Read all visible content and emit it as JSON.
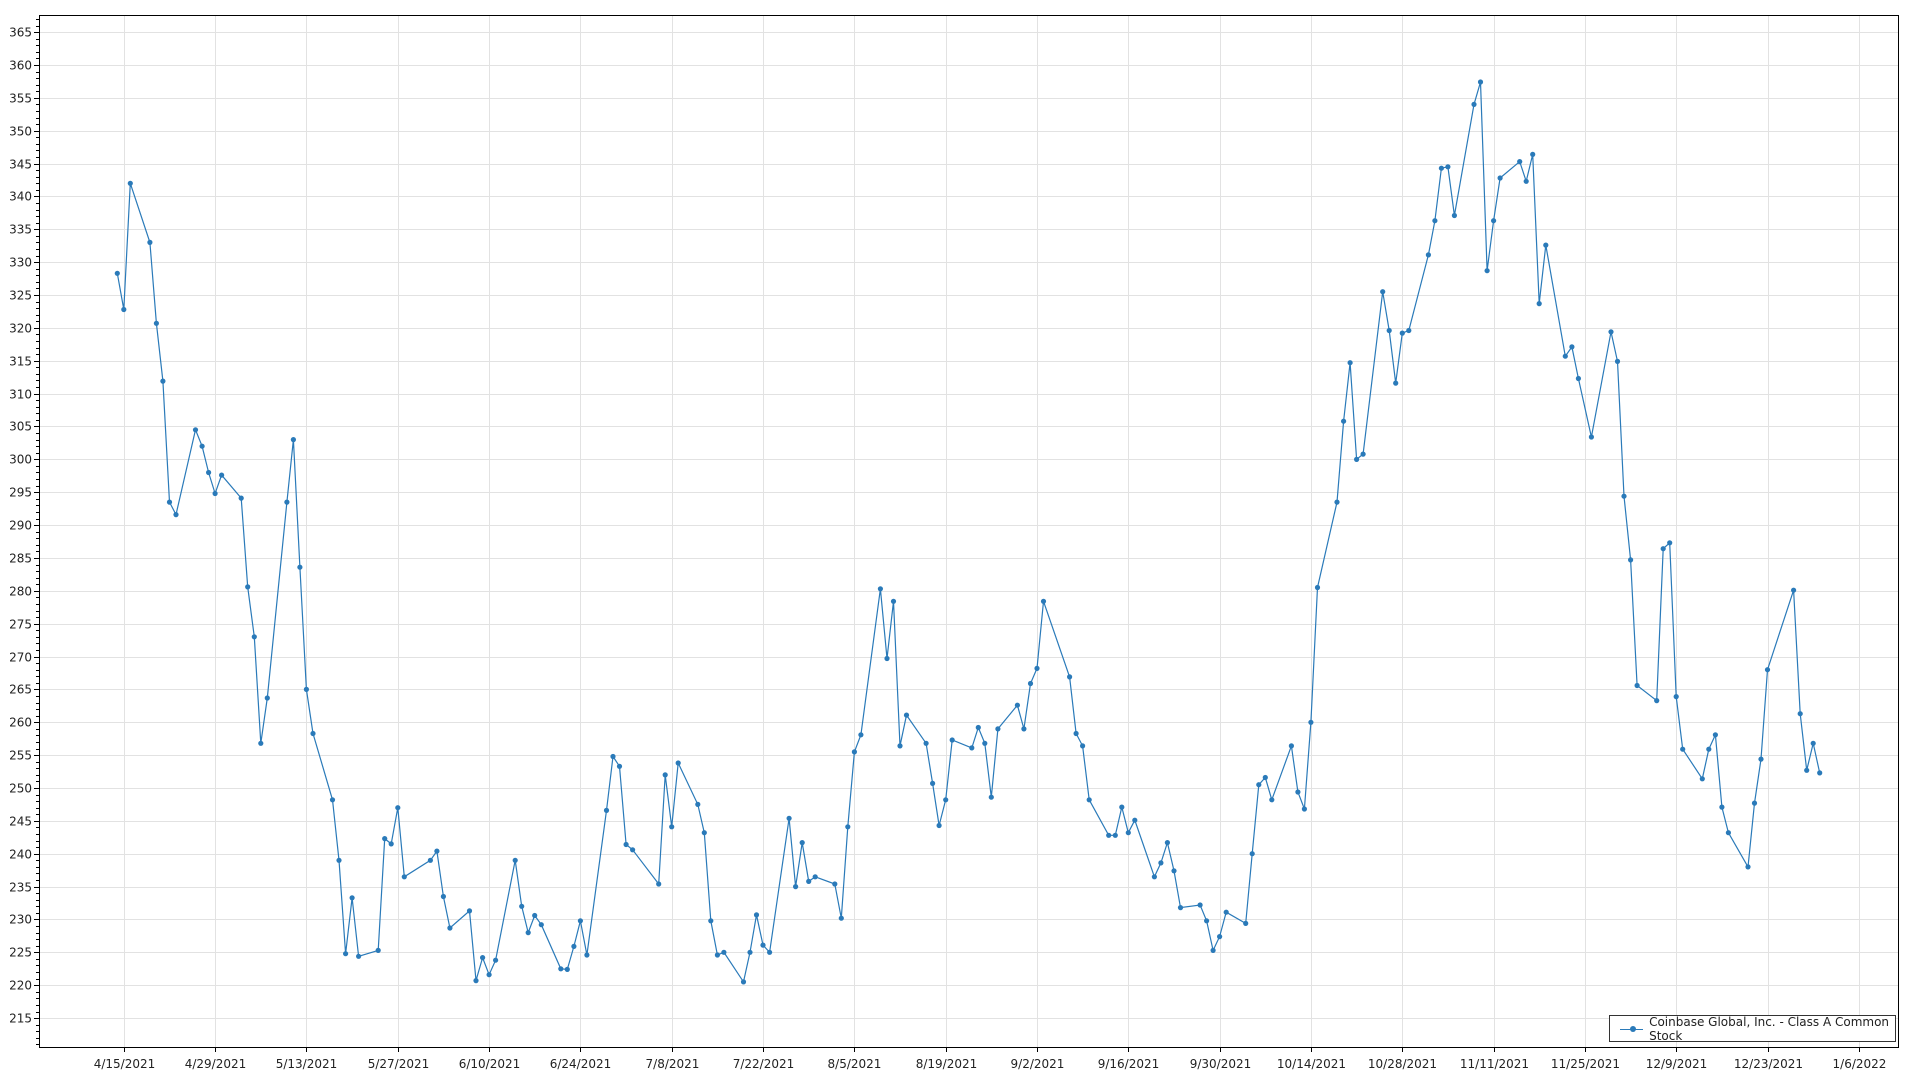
{
  "chart_data": {
    "type": "line",
    "title": "",
    "xlabel": "",
    "ylabel": "",
    "ylim": [
      210.6,
      367.6
    ],
    "xlim": [
      "2021-04-02",
      "2022-01-12"
    ],
    "grid": true,
    "legend_position": "bottom-right",
    "y_ticks": [
      "215",
      "220",
      "225",
      "230",
      "235",
      "240",
      "245",
      "250",
      "255",
      "260",
      "265",
      "270",
      "275",
      "280",
      "285",
      "290",
      "295",
      "300",
      "305",
      "310",
      "315",
      "320",
      "325",
      "330",
      "335",
      "340",
      "345",
      "350",
      "355",
      "360",
      "365"
    ],
    "x_ticks": [
      {
        "date": "2021-04-15",
        "label": "4/15/2021"
      },
      {
        "date": "2021-04-29",
        "label": "4/29/2021"
      },
      {
        "date": "2021-05-13",
        "label": "5/13/2021"
      },
      {
        "date": "2021-05-27",
        "label": "5/27/2021"
      },
      {
        "date": "2021-06-10",
        "label": "6/10/2021"
      },
      {
        "date": "2021-06-24",
        "label": "6/24/2021"
      },
      {
        "date": "2021-07-08",
        "label": "7/8/2021"
      },
      {
        "date": "2021-07-22",
        "label": "7/22/2021"
      },
      {
        "date": "2021-08-05",
        "label": "8/5/2021"
      },
      {
        "date": "2021-08-19",
        "label": "8/19/2021"
      },
      {
        "date": "2021-09-02",
        "label": "9/2/2021"
      },
      {
        "date": "2021-09-16",
        "label": "9/16/2021"
      },
      {
        "date": "2021-09-30",
        "label": "9/30/2021"
      },
      {
        "date": "2021-10-14",
        "label": "10/14/2021"
      },
      {
        "date": "2021-10-28",
        "label": "10/28/2021"
      },
      {
        "date": "2021-11-11",
        "label": "11/11/2021"
      },
      {
        "date": "2021-11-25",
        "label": "11/25/2021"
      },
      {
        "date": "2021-12-09",
        "label": "12/9/2021"
      },
      {
        "date": "2021-12-23",
        "label": "12/23/2021"
      },
      {
        "date": "2022-01-06",
        "label": "1/6/2022"
      }
    ],
    "series": [
      {
        "name": "Coinbase Global, Inc. - Class A Common Stock",
        "color": "#2a7ab9",
        "points": [
          [
            "2021-04-14",
            328.3
          ],
          [
            "2021-04-15",
            322.8
          ],
          [
            "2021-04-16",
            342.0
          ],
          [
            "2021-04-19",
            333.0
          ],
          [
            "2021-04-20",
            320.7
          ],
          [
            "2021-04-21",
            311.9
          ],
          [
            "2021-04-22",
            293.5
          ],
          [
            "2021-04-23",
            291.6
          ],
          [
            "2021-04-26",
            304.5
          ],
          [
            "2021-04-27",
            302.0
          ],
          [
            "2021-04-28",
            298.0
          ],
          [
            "2021-04-29",
            294.8
          ],
          [
            "2021-04-30",
            297.6
          ],
          [
            "2021-05-03",
            294.1
          ],
          [
            "2021-05-04",
            280.6
          ],
          [
            "2021-05-05",
            273.0
          ],
          [
            "2021-05-06",
            256.8
          ],
          [
            "2021-05-07",
            263.7
          ],
          [
            "2021-05-10",
            293.5
          ],
          [
            "2021-05-11",
            303.0
          ],
          [
            "2021-05-12",
            283.6
          ],
          [
            "2021-05-13",
            265.0
          ],
          [
            "2021-05-14",
            258.3
          ],
          [
            "2021-05-17",
            248.2
          ],
          [
            "2021-05-18",
            239.0
          ],
          [
            "2021-05-19",
            224.8
          ],
          [
            "2021-05-20",
            233.3
          ],
          [
            "2021-05-21",
            224.4
          ],
          [
            "2021-05-24",
            225.3
          ],
          [
            "2021-05-25",
            242.3
          ],
          [
            "2021-05-26",
            241.5
          ],
          [
            "2021-05-27",
            247.0
          ],
          [
            "2021-05-28",
            236.5
          ],
          [
            "2021-06-01",
            239.0
          ],
          [
            "2021-06-02",
            240.4
          ],
          [
            "2021-06-03",
            233.5
          ],
          [
            "2021-06-04",
            228.7
          ],
          [
            "2021-06-07",
            231.3
          ],
          [
            "2021-06-08",
            220.7
          ],
          [
            "2021-06-09",
            224.2
          ],
          [
            "2021-06-10",
            221.6
          ],
          [
            "2021-06-11",
            223.8
          ],
          [
            "2021-06-14",
            239.0
          ],
          [
            "2021-06-15",
            232.0
          ],
          [
            "2021-06-16",
            228.0
          ],
          [
            "2021-06-17",
            230.6
          ],
          [
            "2021-06-18",
            229.2
          ],
          [
            "2021-06-21",
            222.5
          ],
          [
            "2021-06-22",
            222.4
          ],
          [
            "2021-06-23",
            225.9
          ],
          [
            "2021-06-24",
            229.8
          ],
          [
            "2021-06-25",
            224.6
          ],
          [
            "2021-06-28",
            246.6
          ],
          [
            "2021-06-29",
            254.8
          ],
          [
            "2021-06-30",
            253.3
          ],
          [
            "2021-07-01",
            241.4
          ],
          [
            "2021-07-02",
            240.6
          ],
          [
            "2021-07-06",
            235.4
          ],
          [
            "2021-07-07",
            252.0
          ],
          [
            "2021-07-08",
            244.1
          ],
          [
            "2021-07-09",
            253.8
          ],
          [
            "2021-07-12",
            247.5
          ],
          [
            "2021-07-13",
            243.2
          ],
          [
            "2021-07-14",
            229.8
          ],
          [
            "2021-07-15",
            224.6
          ],
          [
            "2021-07-16",
            225.0
          ],
          [
            "2021-07-19",
            220.5
          ],
          [
            "2021-07-20",
            225.0
          ],
          [
            "2021-07-21",
            230.7
          ],
          [
            "2021-07-22",
            226.1
          ],
          [
            "2021-07-23",
            225.0
          ],
          [
            "2021-07-26",
            245.4
          ],
          [
            "2021-07-27",
            235.0
          ],
          [
            "2021-07-28",
            241.7
          ],
          [
            "2021-07-29",
            235.8
          ],
          [
            "2021-07-30",
            236.5
          ],
          [
            "2021-08-02",
            235.4
          ],
          [
            "2021-08-03",
            230.2
          ],
          [
            "2021-08-04",
            244.1
          ],
          [
            "2021-08-05",
            255.5
          ],
          [
            "2021-08-06",
            258.1
          ],
          [
            "2021-08-09",
            280.3
          ],
          [
            "2021-08-10",
            269.7
          ],
          [
            "2021-08-11",
            278.4
          ],
          [
            "2021-08-12",
            256.4
          ],
          [
            "2021-08-13",
            261.1
          ],
          [
            "2021-08-16",
            256.8
          ],
          [
            "2021-08-17",
            250.7
          ],
          [
            "2021-08-18",
            244.3
          ],
          [
            "2021-08-19",
            248.2
          ],
          [
            "2021-08-20",
            257.3
          ],
          [
            "2021-08-23",
            256.1
          ],
          [
            "2021-08-24",
            259.2
          ],
          [
            "2021-08-25",
            256.8
          ],
          [
            "2021-08-26",
            248.6
          ],
          [
            "2021-08-27",
            259.0
          ],
          [
            "2021-08-30",
            262.6
          ],
          [
            "2021-08-31",
            259.0
          ],
          [
            "2021-09-01",
            265.9
          ],
          [
            "2021-09-02",
            268.2
          ],
          [
            "2021-09-03",
            278.4
          ],
          [
            "2021-09-07",
            266.9
          ],
          [
            "2021-09-08",
            258.3
          ],
          [
            "2021-09-09",
            256.4
          ],
          [
            "2021-09-10",
            248.2
          ],
          [
            "2021-09-13",
            242.8
          ],
          [
            "2021-09-14",
            242.8
          ],
          [
            "2021-09-15",
            247.1
          ],
          [
            "2021-09-16",
            243.2
          ],
          [
            "2021-09-17",
            245.1
          ],
          [
            "2021-09-20",
            236.5
          ],
          [
            "2021-09-21",
            238.6
          ],
          [
            "2021-09-22",
            241.7
          ],
          [
            "2021-09-23",
            237.4
          ],
          [
            "2021-09-24",
            231.8
          ],
          [
            "2021-09-27",
            232.2
          ],
          [
            "2021-09-28",
            229.8
          ],
          [
            "2021-09-29",
            225.3
          ],
          [
            "2021-09-30",
            227.4
          ],
          [
            "2021-10-01",
            231.1
          ],
          [
            "2021-10-04",
            229.4
          ],
          [
            "2021-10-05",
            240.0
          ],
          [
            "2021-10-06",
            250.5
          ],
          [
            "2021-10-07",
            251.6
          ],
          [
            "2021-10-08",
            248.2
          ],
          [
            "2021-10-11",
            256.4
          ],
          [
            "2021-10-12",
            249.4
          ],
          [
            "2021-10-13",
            246.8
          ],
          [
            "2021-10-14",
            260.0
          ],
          [
            "2021-10-15",
            280.5
          ],
          [
            "2021-10-18",
            293.5
          ],
          [
            "2021-10-19",
            305.8
          ],
          [
            "2021-10-20",
            314.7
          ],
          [
            "2021-10-21",
            300.0
          ],
          [
            "2021-10-22",
            300.8
          ],
          [
            "2021-10-25",
            325.5
          ],
          [
            "2021-10-26",
            319.6
          ],
          [
            "2021-10-27",
            311.6
          ],
          [
            "2021-10-28",
            319.2
          ],
          [
            "2021-10-29",
            319.6
          ],
          [
            "2021-11-01",
            331.1
          ],
          [
            "2021-11-02",
            336.3
          ],
          [
            "2021-11-03",
            344.3
          ],
          [
            "2021-11-04",
            344.5
          ],
          [
            "2021-11-05",
            337.1
          ],
          [
            "2021-11-08",
            354.0
          ],
          [
            "2021-11-09",
            357.4
          ],
          [
            "2021-11-10",
            328.7
          ],
          [
            "2021-11-11",
            336.3
          ],
          [
            "2021-11-12",
            342.8
          ],
          [
            "2021-11-15",
            345.3
          ],
          [
            "2021-11-16",
            342.3
          ],
          [
            "2021-11-17",
            346.4
          ],
          [
            "2021-11-18",
            323.7
          ],
          [
            "2021-11-19",
            332.6
          ],
          [
            "2021-11-22",
            315.7
          ],
          [
            "2021-11-23",
            317.1
          ],
          [
            "2021-11-24",
            312.3
          ],
          [
            "2021-11-26",
            303.4
          ],
          [
            "2021-11-29",
            319.4
          ],
          [
            "2021-11-30",
            314.9
          ],
          [
            "2021-12-01",
            294.4
          ],
          [
            "2021-12-02",
            284.7
          ],
          [
            "2021-12-03",
            265.6
          ],
          [
            "2021-12-06",
            263.3
          ],
          [
            "2021-12-07",
            286.4
          ],
          [
            "2021-12-08",
            287.3
          ],
          [
            "2021-12-09",
            263.9
          ],
          [
            "2021-12-10",
            255.9
          ],
          [
            "2021-12-13",
            251.4
          ],
          [
            "2021-12-14",
            255.9
          ],
          [
            "2021-12-15",
            258.1
          ],
          [
            "2021-12-16",
            247.1
          ],
          [
            "2021-12-17",
            243.2
          ],
          [
            "2021-12-20",
            238.0
          ],
          [
            "2021-12-21",
            247.7
          ],
          [
            "2021-12-22",
            254.4
          ],
          [
            "2021-12-23",
            268.0
          ],
          [
            "2021-12-27",
            280.1
          ],
          [
            "2021-12-28",
            261.3
          ],
          [
            "2021-12-29",
            252.7
          ],
          [
            "2021-12-30",
            256.8
          ],
          [
            "2021-12-31",
            252.3
          ]
        ]
      }
    ]
  },
  "legend": {
    "label": "Coinbase Global, Inc. - Class A Common Stock"
  }
}
